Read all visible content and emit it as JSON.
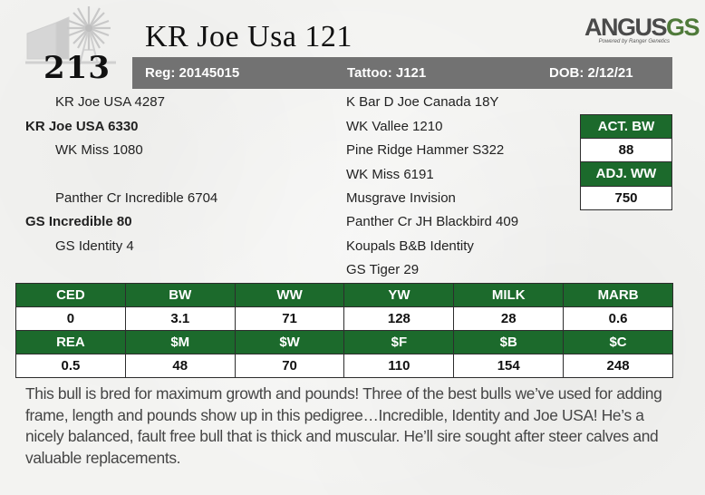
{
  "lot_number": "213",
  "animal_name": "KR Joe Usa 121",
  "brand": {
    "word": "ANGUS",
    "suffix": "GS",
    "tagline": "Powered by Ranger Genetics"
  },
  "reg_bar": {
    "registration": "Reg: 20145015",
    "tattoo": "Tattoo: J121",
    "dob": "DOB: 2/12/21"
  },
  "pedigree": {
    "sire_sire": "KR Joe USA 4287",
    "sire": "KR Joe USA 6330",
    "sire_dam": "WK Miss 1080",
    "dam_sire": "Panther Cr Incredible 6704",
    "dam": "GS Incredible 80",
    "dam_dam": "GS Identity 4",
    "right_column": [
      "K Bar D Joe Canada 18Y",
      "WK Vallee 1210",
      "Pine Ridge Hammer S322",
      "WK Miss 6191",
      "Musgrave Invision",
      "Panther Cr JH Blackbird 409",
      "Koupals B&B Identity",
      "GS Tiger 29"
    ]
  },
  "weights": {
    "act_bw_label": "ACT. BW",
    "act_bw_value": "88",
    "adj_ww_label": "ADJ. WW",
    "adj_ww_value": "750"
  },
  "epd_table": {
    "row1_headers": [
      "CED",
      "BW",
      "WW",
      "YW",
      "MILK",
      "MARB"
    ],
    "row1_values": [
      "0",
      "3.1",
      "71",
      "128",
      "28",
      "0.6"
    ],
    "row2_headers": [
      "REA",
      "$M",
      "$W",
      "$F",
      "$B",
      "$C"
    ],
    "row2_values": [
      "0.5",
      "48",
      "70",
      "110",
      "154",
      "248"
    ]
  },
  "description": "This bull is bred for maximum growth and pounds! Three of the best bulls we’ve used for adding frame, length and pounds show up in this pedigree…Incredible, Identity and Joe USA! He’s a nicely balanced, fault free bull that is thick and muscular. He’ll sire sought after steer calves and valuable replacements.",
  "colors": {
    "green": "#1c6a2c",
    "bar_gray": "#727272"
  }
}
